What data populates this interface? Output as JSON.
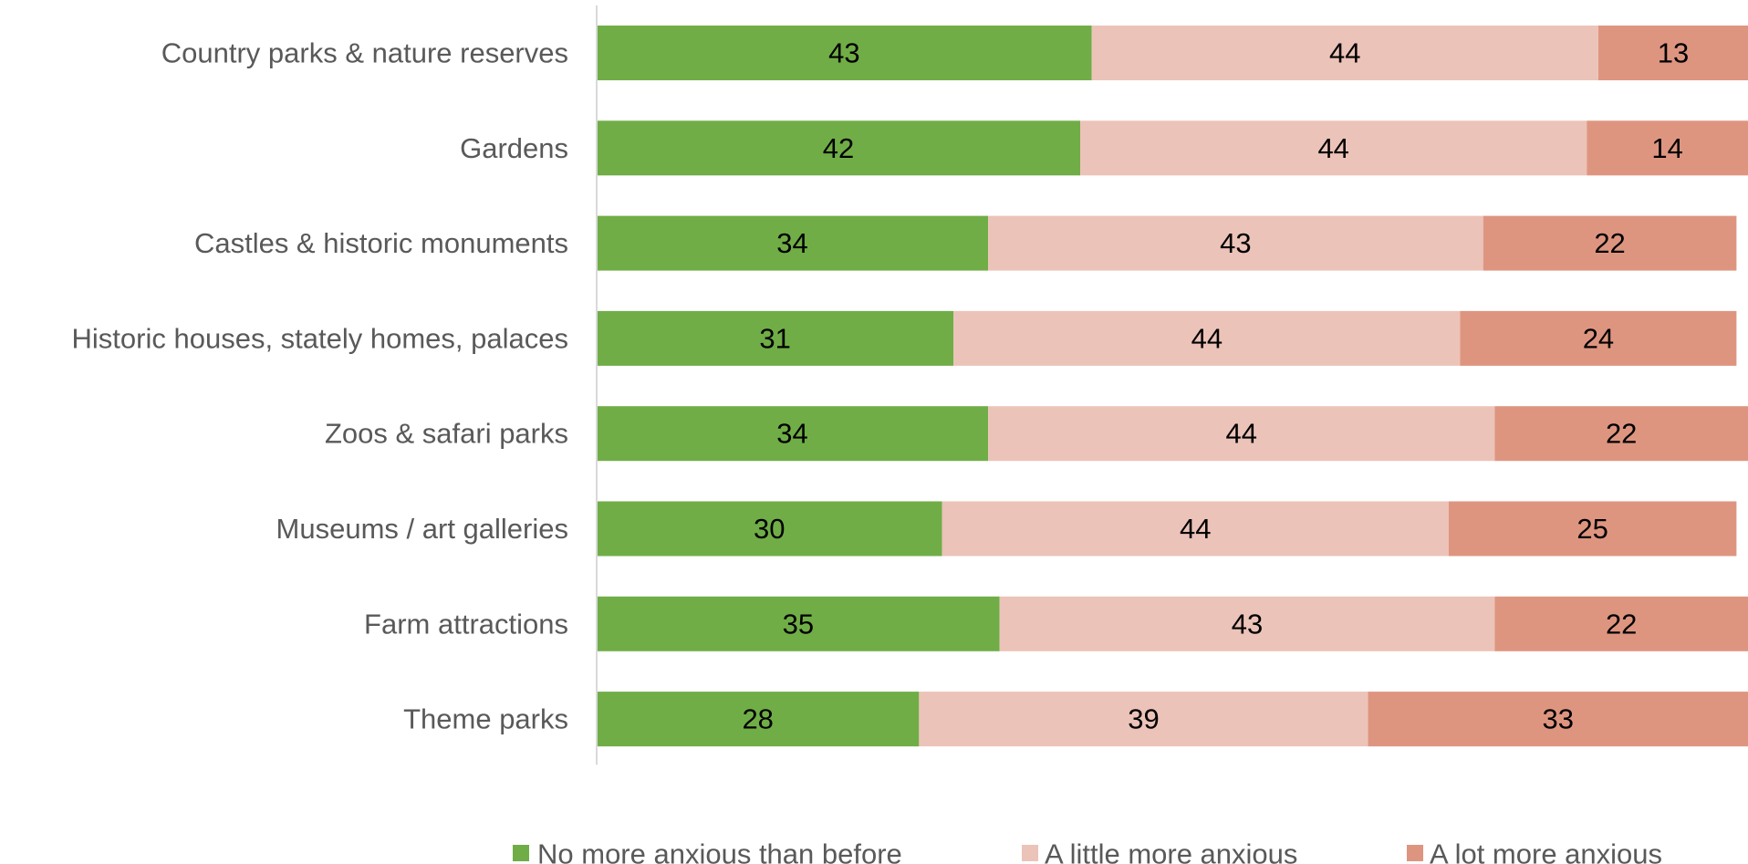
{
  "chart_data": {
    "type": "bar",
    "orientation": "horizontal",
    "stacked": true,
    "title": "",
    "xlabel": "",
    "ylabel": "",
    "xlim": [
      0,
      100
    ],
    "grid": false,
    "legend_position": "bottom",
    "categories": [
      "Country parks & nature reserves",
      "Gardens",
      "Castles & historic monuments",
      "Historic houses, stately homes, palaces",
      "Zoos & safari parks",
      "Museums / art galleries",
      "Farm attractions",
      "Theme parks"
    ],
    "series": [
      {
        "name": "No more anxious than before",
        "color": "#70AD47",
        "values": [
          43,
          42,
          34,
          31,
          34,
          30,
          35,
          28
        ]
      },
      {
        "name": "A little more anxious",
        "color": "#ECC3B8",
        "values": [
          44,
          44,
          43,
          44,
          44,
          44,
          43,
          39
        ]
      },
      {
        "name": "A lot more anxious",
        "color": "#DE9580",
        "values": [
          13,
          14,
          22,
          24,
          22,
          25,
          22,
          33
        ]
      }
    ],
    "axis_color": "#D9D9D9"
  }
}
